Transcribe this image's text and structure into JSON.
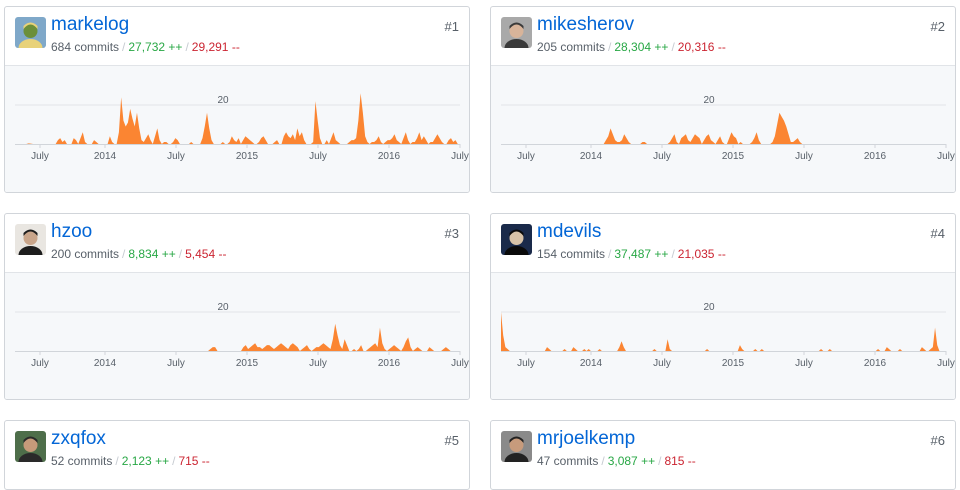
{
  "colors": {
    "area": "#fb8532",
    "link": "#0366d6",
    "add": "#28a745",
    "del": "#cb2431"
  },
  "contributors": [
    {
      "rank": "#1",
      "username": "markelog",
      "commits": "684 commits",
      "additions": "27,732 ++",
      "deletions": "29,291 --",
      "avatar_icon": "person-outdoor-avatar",
      "chart_data": {
        "type": "area",
        "ytick": "20",
        "xticks": [
          "July",
          "2014",
          "July",
          "2015",
          "July",
          "2016",
          "July"
        ],
        "values": [
          0,
          0,
          0,
          0,
          0,
          0,
          0.3,
          0.2,
          0,
          0,
          0,
          0,
          0,
          0,
          0,
          0,
          0,
          0,
          0,
          2,
          3,
          1,
          2,
          0,
          0,
          0,
          3,
          2,
          0,
          3,
          6,
          1,
          0,
          0,
          0,
          2,
          1,
          0,
          0,
          0,
          0,
          0,
          4,
          1,
          0,
          0,
          6,
          24,
          12,
          9,
          11,
          18,
          13,
          9,
          16,
          8,
          2,
          1,
          3,
          5,
          2,
          0,
          4,
          8,
          2,
          0,
          1,
          1,
          0,
          0,
          1,
          3,
          2,
          0,
          0,
          0,
          0,
          0,
          1,
          0,
          0,
          0,
          0,
          3,
          9,
          16,
          8,
          2,
          0,
          0,
          0,
          0,
          1,
          0,
          0,
          1,
          4,
          2,
          1,
          3,
          0,
          2,
          4,
          3,
          2,
          1,
          0,
          0,
          1,
          3,
          4,
          2,
          0,
          0,
          0,
          1,
          2,
          0,
          0,
          4,
          6,
          4,
          3,
          5,
          2,
          8,
          4,
          6,
          2,
          0,
          0,
          0,
          1,
          22,
          12,
          3,
          0,
          0,
          2,
          0,
          3,
          6,
          2,
          1,
          0,
          0,
          0,
          0,
          1,
          2,
          2,
          3,
          12,
          26,
          16,
          4,
          1,
          0,
          1,
          1,
          2,
          4,
          1,
          0,
          1,
          2,
          2,
          3,
          5,
          2,
          1,
          0,
          3,
          6,
          2,
          0,
          1,
          1,
          3,
          6,
          2,
          4,
          2,
          0,
          1,
          1,
          3,
          5,
          3,
          1,
          0,
          0,
          2,
          3,
          1,
          2,
          0,
          0
        ]
      }
    },
    {
      "rank": "#2",
      "username": "mikesherov",
      "commits": "205 commits",
      "additions": "28,304 ++",
      "deletions": "20,316 --",
      "avatar_icon": "person-glasses-avatar",
      "chart_data": {
        "type": "area",
        "ytick": "20",
        "xticks": [
          "July",
          "2014",
          "July",
          "2015",
          "July",
          "2016",
          "July"
        ],
        "values": [
          0,
          0,
          0,
          0,
          0,
          0,
          0,
          0,
          0,
          0,
          0,
          0,
          0,
          0,
          0,
          0,
          0,
          0,
          0,
          0,
          0,
          0,
          0,
          0,
          0,
          0,
          0,
          0,
          0,
          0,
          0,
          0,
          0,
          0,
          0,
          0,
          0,
          0,
          0,
          0,
          0,
          0,
          0,
          0,
          0,
          0,
          2,
          4,
          8,
          5,
          2,
          1,
          1,
          2,
          5,
          3,
          1,
          0,
          0,
          0,
          0,
          0,
          1,
          1,
          0,
          0,
          0,
          0,
          0,
          0,
          0,
          0,
          0,
          0,
          1,
          3,
          5,
          1,
          0,
          3,
          4,
          5,
          2,
          1,
          3,
          5,
          4,
          3,
          0,
          2,
          4,
          5,
          2,
          1,
          0,
          2,
          4,
          1,
          0,
          0,
          3,
          6,
          4,
          3,
          0,
          1,
          0,
          0,
          0,
          0,
          1,
          3,
          6,
          2,
          0,
          0,
          0,
          0,
          0,
          1,
          4,
          10,
          16,
          14,
          12,
          9,
          5,
          1,
          1,
          2,
          3,
          1,
          0,
          0,
          0,
          0,
          0,
          0,
          0,
          0,
          0,
          0,
          0,
          0,
          0,
          0,
          0,
          0,
          0,
          0,
          0,
          0,
          0,
          0,
          0,
          0,
          0,
          0,
          0,
          0,
          0,
          0,
          0,
          0,
          0,
          0,
          0,
          0,
          0,
          0,
          0,
          0,
          0,
          0,
          0,
          0,
          0,
          0,
          0,
          0,
          0,
          0,
          0,
          0,
          0,
          0,
          0,
          0,
          0,
          0,
          0,
          0,
          0,
          0,
          0,
          0
        ]
      }
    },
    {
      "rank": "#3",
      "username": "hzoo",
      "commits": "200 commits",
      "additions": "8,834 ++",
      "deletions": "5,454 --",
      "avatar_icon": "person-short-hair-avatar",
      "chart_data": {
        "type": "area",
        "ytick": "20",
        "xticks": [
          "July",
          "2014",
          "July",
          "2015",
          "July",
          "2016",
          "July"
        ],
        "values": [
          0,
          0,
          0,
          0,
          0,
          0,
          0,
          0,
          0,
          0,
          0,
          0,
          0,
          0,
          0,
          0,
          0,
          0,
          0,
          0,
          0,
          0,
          0,
          0,
          0,
          0,
          0,
          0,
          0,
          0,
          0,
          0,
          0,
          0,
          0,
          0,
          0,
          0,
          0,
          0,
          0,
          0,
          0,
          0,
          0,
          0,
          0,
          0,
          0,
          0,
          0,
          0,
          0,
          0,
          0,
          0,
          0,
          0,
          0,
          0,
          0,
          0,
          0,
          0,
          0,
          0,
          0,
          0,
          0,
          0,
          0,
          0,
          0,
          0,
          0,
          0,
          0,
          0,
          0,
          0,
          0,
          0,
          0,
          1,
          2,
          2,
          0,
          0,
          0,
          0,
          0,
          0,
          0,
          0,
          0,
          0,
          0,
          2,
          3,
          1,
          2,
          3,
          4,
          2,
          2,
          1,
          2,
          3,
          3,
          2,
          1,
          2,
          3,
          4,
          3,
          2,
          1,
          3,
          4,
          3,
          2,
          0,
          1,
          2,
          3,
          1,
          0,
          1,
          2,
          2,
          3,
          4,
          3,
          2,
          1,
          6,
          14,
          8,
          3,
          1,
          6,
          3,
          0,
          0,
          1,
          0,
          1,
          3,
          0,
          0,
          1,
          2,
          3,
          4,
          2,
          12,
          4,
          1,
          0,
          1,
          2,
          3,
          2,
          1,
          0,
          2,
          5,
          7,
          2,
          0,
          1,
          2,
          1,
          0,
          0,
          0,
          2,
          1,
          0,
          0,
          0,
          0,
          1,
          2,
          1,
          0,
          0,
          0,
          0,
          0
        ]
      }
    },
    {
      "rank": "#4",
      "username": "mdevils",
      "commits": "154 commits",
      "additions": "37,487 ++",
      "deletions": "21,035 --",
      "avatar_icon": "person-dark-avatar",
      "chart_data": {
        "type": "area",
        "ytick": "20",
        "xticks": [
          "July",
          "2014",
          "July",
          "2015",
          "July",
          "2016",
          "July"
        ],
        "values": [
          20,
          8,
          2,
          1,
          0,
          0,
          0,
          0,
          0,
          0,
          0,
          0,
          0,
          0,
          0,
          0,
          0,
          0,
          0,
          0,
          0,
          2,
          1,
          0,
          0,
          0,
          0,
          0,
          0,
          1,
          0,
          0,
          0,
          2,
          1,
          0,
          0,
          0,
          1,
          0,
          1,
          0,
          0,
          0,
          0,
          1,
          0,
          0,
          0,
          0,
          0,
          0,
          0,
          0,
          2,
          5,
          2,
          0,
          0,
          0,
          0,
          0,
          0,
          0,
          0,
          0,
          0,
          0,
          0,
          0,
          1,
          0,
          0,
          0,
          0,
          0,
          6,
          1,
          0,
          0,
          0,
          0,
          0,
          0,
          0,
          0,
          0,
          0,
          0,
          0,
          0,
          0,
          0,
          0,
          1,
          0,
          0,
          0,
          0,
          0,
          0,
          0,
          0,
          0,
          0,
          0,
          0,
          0,
          0,
          3,
          1,
          0,
          0,
          0,
          0,
          0,
          1,
          0,
          0,
          1,
          0,
          0,
          0,
          0,
          0,
          0,
          0,
          0,
          0,
          0,
          0,
          0,
          0,
          0,
          0,
          0,
          0,
          0,
          0,
          0,
          0,
          0,
          0,
          0,
          0,
          0,
          1,
          0,
          0,
          0,
          1,
          0,
          0,
          0,
          0,
          0,
          0,
          0,
          0,
          0,
          0,
          0,
          0,
          0,
          0,
          0,
          0,
          0,
          0,
          0,
          0,
          0,
          1,
          0,
          0,
          0,
          2,
          1,
          0,
          0,
          0,
          0,
          1,
          0,
          0,
          0,
          0,
          0,
          0,
          0,
          0,
          0,
          2,
          1,
          0,
          0,
          1,
          2,
          12,
          3,
          0,
          0,
          0,
          0
        ]
      }
    },
    {
      "rank": "#5",
      "username": "zxqfox",
      "commits": "52 commits",
      "additions": "2,123 ++",
      "deletions": "715 --",
      "avatar_icon": "person-beard-avatar"
    },
    {
      "rank": "#6",
      "username": "mrjoelkemp",
      "commits": "47 commits",
      "additions": "3,087 ++",
      "deletions": "815 --",
      "avatar_icon": "person-dark-hair-avatar"
    }
  ]
}
